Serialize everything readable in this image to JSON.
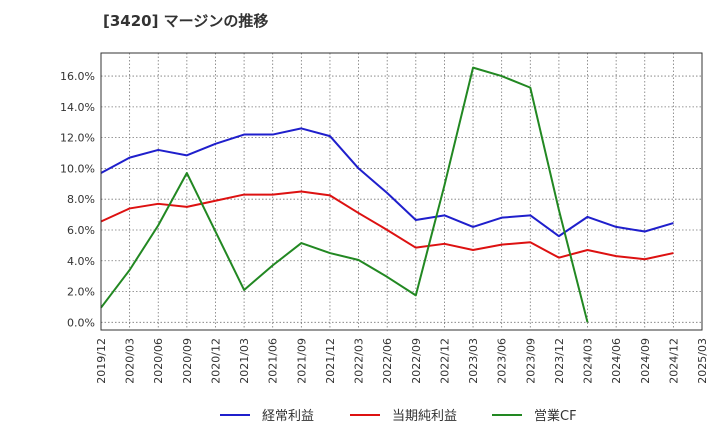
{
  "chart_data": {
    "type": "line",
    "title": "[3420]  マージンの推移",
    "xlabel": "",
    "ylabel": "",
    "ylim": [
      -0.5,
      17.5
    ],
    "y_ticks": [
      0,
      2,
      4,
      6,
      8,
      10,
      12,
      14,
      16
    ],
    "y_tick_labels": [
      "0.0%",
      "2.0%",
      "4.0%",
      "6.0%",
      "8.0%",
      "10.0%",
      "12.0%",
      "14.0%",
      "16.0%"
    ],
    "x": [
      "2019/12",
      "2020/03",
      "2020/06",
      "2020/09",
      "2020/12",
      "2021/03",
      "2021/06",
      "2021/09",
      "2021/12",
      "2022/03",
      "2022/06",
      "2022/09",
      "2022/12",
      "2023/03",
      "2023/06",
      "2023/09",
      "2023/12",
      "2024/03",
      "2024/06",
      "2024/09",
      "2024/12",
      "2025/03"
    ],
    "grid": true,
    "legend_position": "bottom",
    "series": [
      {
        "name": "経常利益",
        "color": "#1f1fcc",
        "values": [
          9.7,
          10.7,
          11.2,
          10.85,
          11.6,
          12.2,
          12.2,
          12.6,
          12.1,
          10.0,
          8.4,
          6.65,
          6.95,
          6.2,
          6.8,
          6.95,
          5.6,
          6.85,
          6.2,
          5.9,
          6.45,
          null
        ]
      },
      {
        "name": "当期純利益",
        "color": "#dd1111",
        "values": [
          6.55,
          7.4,
          7.7,
          7.5,
          7.9,
          8.3,
          8.3,
          8.5,
          8.25,
          7.1,
          6.0,
          4.85,
          5.1,
          4.7,
          5.05,
          5.2,
          4.2,
          4.7,
          4.3,
          4.1,
          4.5,
          null
        ]
      },
      {
        "name": "営業CF",
        "color": "#228822",
        "values": [
          0.95,
          3.4,
          6.3,
          9.7,
          5.9,
          2.1,
          3.7,
          5.15,
          4.5,
          4.05,
          2.95,
          1.75,
          8.9,
          16.55,
          16.0,
          15.25,
          7.3,
          0.0,
          null,
          null,
          null,
          null
        ]
      }
    ]
  }
}
